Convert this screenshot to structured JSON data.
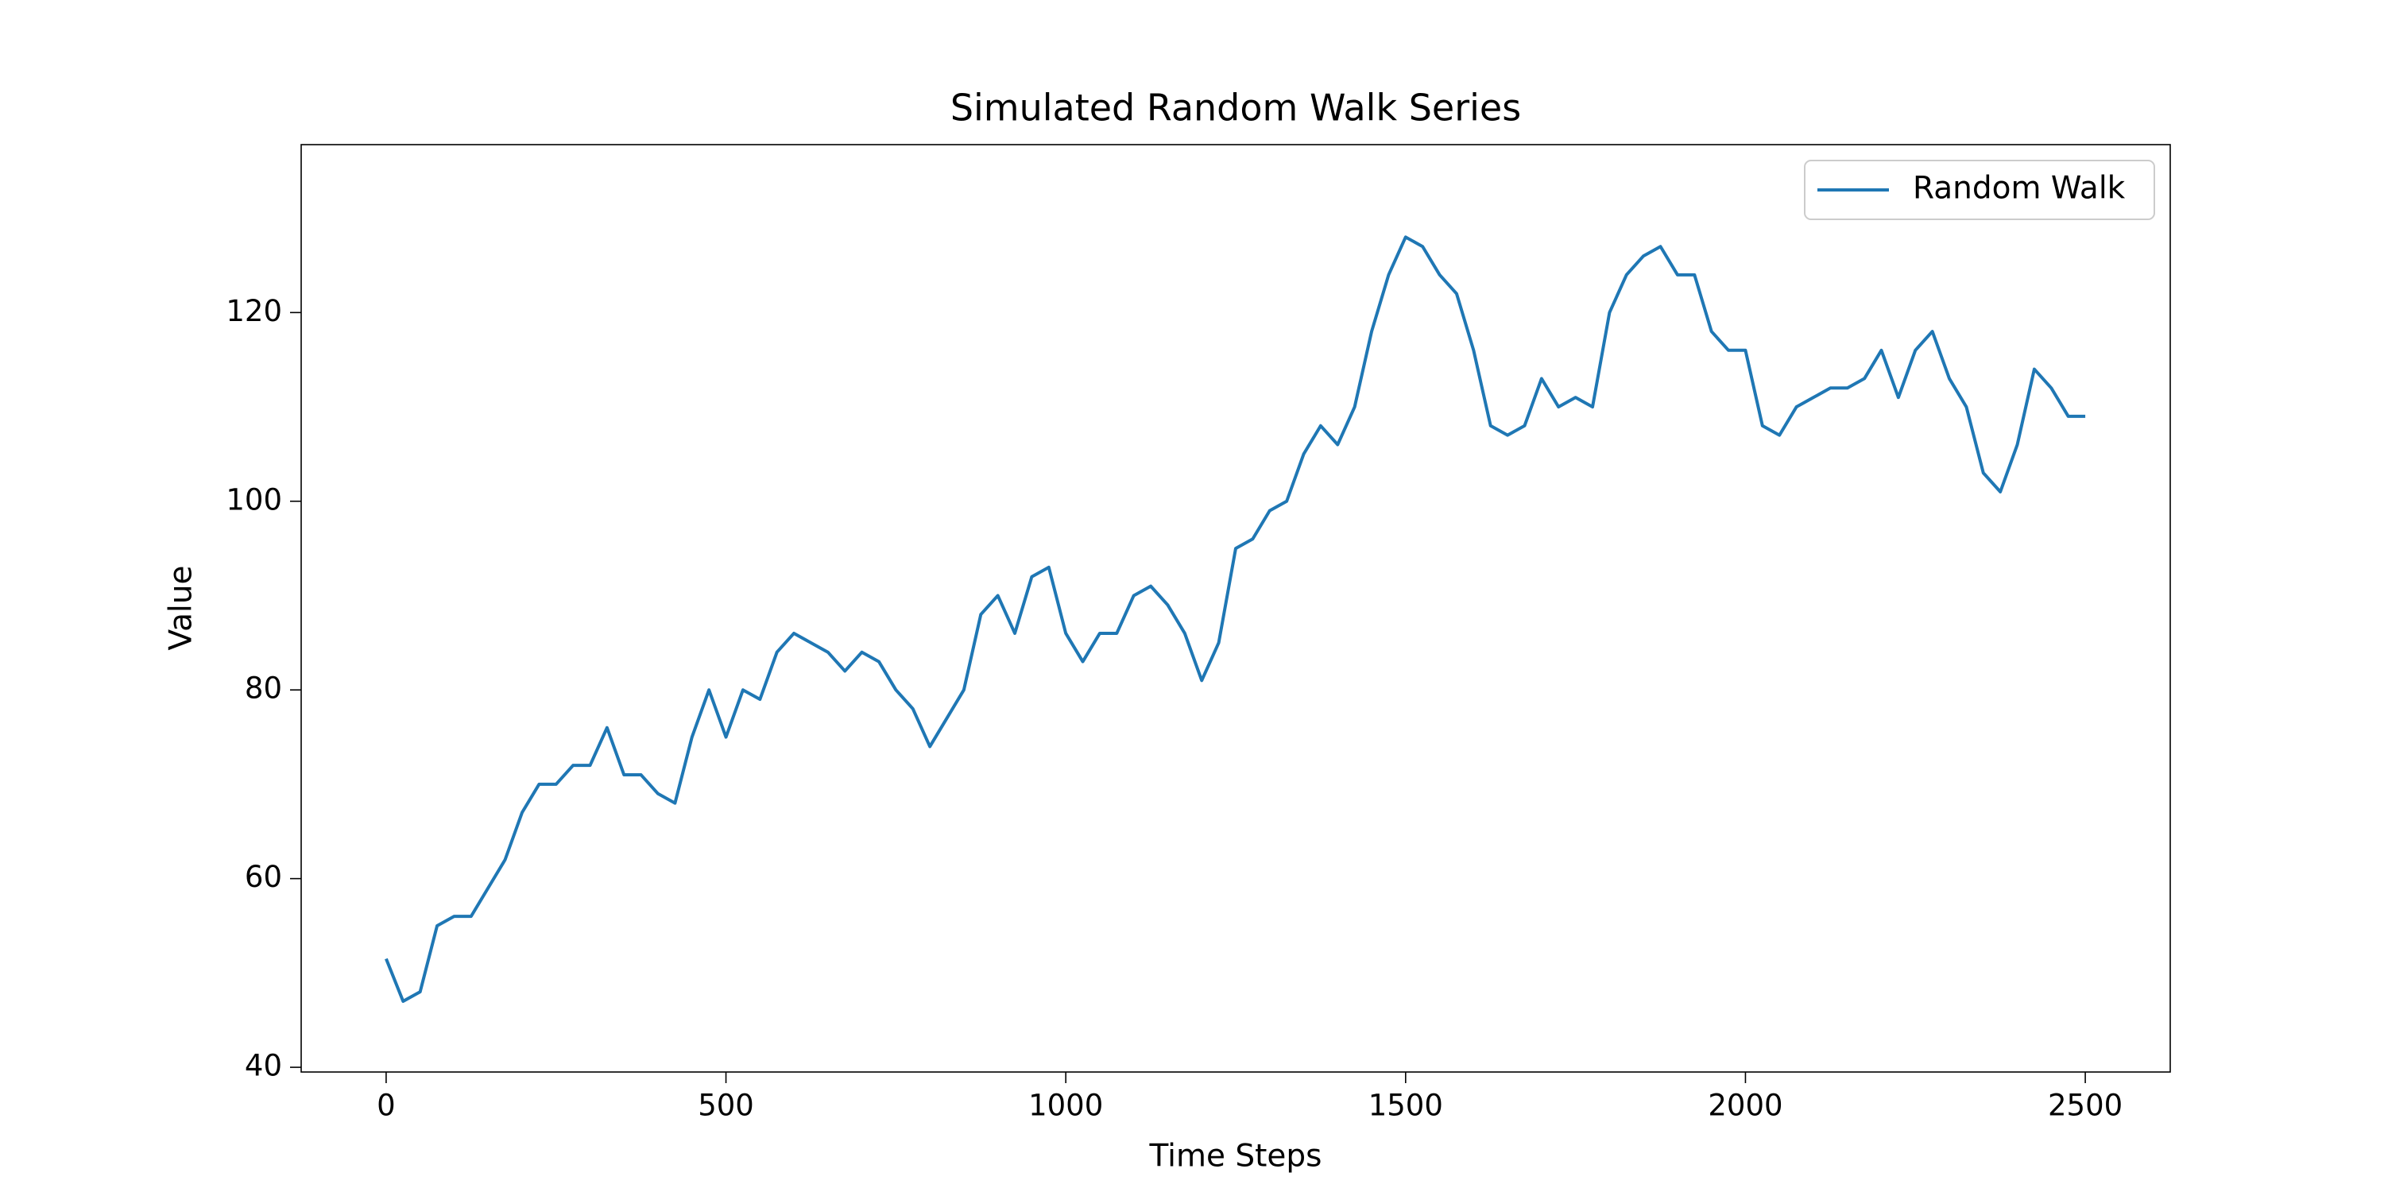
{
  "chart_data": {
    "type": "line",
    "title": "Simulated Random Walk Series",
    "xlabel": "Time Steps",
    "ylabel": "Value",
    "x": [
      0,
      25,
      50,
      75,
      100,
      125,
      150,
      175,
      200,
      225,
      250,
      275,
      300,
      325,
      350,
      375,
      400,
      425,
      450,
      475,
      500,
      525,
      550,
      575,
      600,
      625,
      650,
      675,
      700,
      725,
      750,
      775,
      800,
      825,
      850,
      875,
      900,
      925,
      950,
      975,
      1000,
      1025,
      1050,
      1075,
      1100,
      1125,
      1150,
      1175,
      1200,
      1225,
      1250,
      1275,
      1300,
      1325,
      1350,
      1375,
      1400,
      1425,
      1450,
      1475,
      1500,
      1525,
      1550,
      1575,
      1600,
      1625,
      1650,
      1675,
      1700,
      1725,
      1750,
      1775,
      1800,
      1825,
      1850,
      1875,
      1900,
      1925,
      1950,
      1975,
      2000,
      2025,
      2050,
      2075,
      2100,
      2125,
      2150,
      2175,
      2200,
      2225,
      2250,
      2275,
      2300,
      2325,
      2350,
      2375,
      2400,
      2425,
      2450,
      2475,
      2500
    ],
    "series": [
      {
        "name": "Random Walk",
        "color": "#1f77b4",
        "values": [
          51.5,
          47,
          48,
          55,
          56,
          56,
          59,
          62,
          67,
          70,
          70,
          72,
          72,
          76,
          71,
          71,
          69,
          68,
          75,
          80,
          75,
          80,
          79,
          84,
          86,
          85,
          84,
          82,
          84,
          83,
          80,
          78,
          74,
          77,
          80,
          88,
          90,
          86,
          92,
          93,
          86,
          83,
          86,
          86,
          90,
          91,
          89,
          86,
          81,
          85,
          95,
          96,
          99,
          100,
          105,
          108,
          106,
          110,
          118,
          124,
          128,
          127,
          124,
          122,
          116,
          108,
          107,
          108,
          113,
          110,
          111,
          110,
          120,
          124,
          126,
          127,
          124,
          124,
          118,
          116,
          116,
          108,
          107,
          110,
          111,
          112,
          112,
          113,
          116,
          111,
          116,
          118,
          113,
          110,
          103,
          101,
          106,
          114,
          112,
          109,
          109
        ]
      }
    ],
    "xlim": [
      -125,
      2625
    ],
    "ylim": [
      39.5,
      137.8
    ],
    "xticks": [
      0,
      500,
      1000,
      1500,
      2000,
      2500
    ],
    "yticks": [
      40,
      60,
      80,
      100,
      120
    ],
    "grid": false,
    "legend": "upper right"
  }
}
